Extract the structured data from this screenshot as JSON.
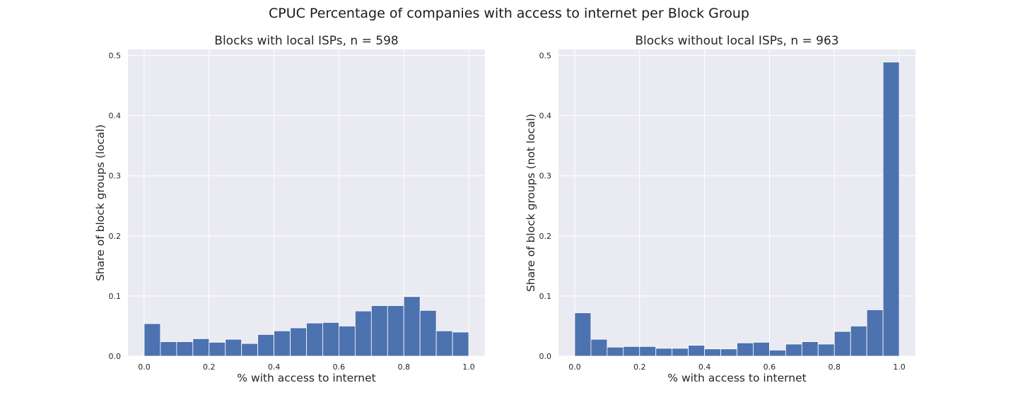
{
  "figure": {
    "suptitle": "CPUC Percentage of companies with access to internet per Block Group"
  },
  "colors": {
    "bar": "#4c72b0",
    "plot_background": "#eaeaf2",
    "grid": "#ffffff"
  },
  "chart_data": [
    {
      "type": "bar",
      "title": "Blocks with local ISPs, n = 598",
      "xlabel": "% with access to internet",
      "ylabel": "Share of block groups (local)",
      "xlim": [
        -0.05,
        1.05
      ],
      "ylim": [
        0,
        0.51
      ],
      "xticks": [
        0.0,
        0.2,
        0.4,
        0.6,
        0.8,
        1.0
      ],
      "xtick_labels": [
        "0.0",
        "0.2",
        "0.4",
        "0.6",
        "0.8",
        "1.0"
      ],
      "yticks": [
        0.0,
        0.1,
        0.2,
        0.3,
        0.4,
        0.5
      ],
      "ytick_labels": [
        "0.0",
        "0.1",
        "0.2",
        "0.3",
        "0.4",
        "0.5"
      ],
      "grid": true,
      "bin_edges": [
        0.0,
        0.05,
        0.1,
        0.15,
        0.2,
        0.25,
        0.3,
        0.35,
        0.4,
        0.45,
        0.5,
        0.55,
        0.6,
        0.65,
        0.7,
        0.75,
        0.8,
        0.85,
        0.9,
        0.95,
        1.0
      ],
      "values": [
        0.054,
        0.024,
        0.024,
        0.029,
        0.023,
        0.028,
        0.021,
        0.036,
        0.042,
        0.047,
        0.055,
        0.056,
        0.05,
        0.075,
        0.084,
        0.084,
        0.099,
        0.076,
        0.042,
        0.04
      ]
    },
    {
      "type": "bar",
      "title": "Blocks without local ISPs, n = 963",
      "xlabel": "% with access to internet",
      "ylabel": "Share of block groups (not local)",
      "xlim": [
        -0.05,
        1.05
      ],
      "ylim": [
        0,
        0.51
      ],
      "xticks": [
        0.0,
        0.2,
        0.4,
        0.6,
        0.8,
        1.0
      ],
      "xtick_labels": [
        "0.0",
        "0.2",
        "0.4",
        "0.6",
        "0.8",
        "1.0"
      ],
      "yticks": [
        0.0,
        0.1,
        0.2,
        0.3,
        0.4,
        0.5
      ],
      "ytick_labels": [
        "0.0",
        "0.1",
        "0.2",
        "0.3",
        "0.4",
        "0.5"
      ],
      "grid": true,
      "bin_edges": [
        0.0,
        0.05,
        0.1,
        0.15,
        0.2,
        0.25,
        0.3,
        0.35,
        0.4,
        0.45,
        0.5,
        0.55,
        0.6,
        0.65,
        0.7,
        0.75,
        0.8,
        0.85,
        0.9,
        0.95,
        1.0
      ],
      "values": [
        0.072,
        0.028,
        0.015,
        0.016,
        0.016,
        0.013,
        0.013,
        0.018,
        0.012,
        0.012,
        0.022,
        0.023,
        0.01,
        0.02,
        0.024,
        0.02,
        0.041,
        0.05,
        0.077,
        0.489
      ]
    }
  ]
}
